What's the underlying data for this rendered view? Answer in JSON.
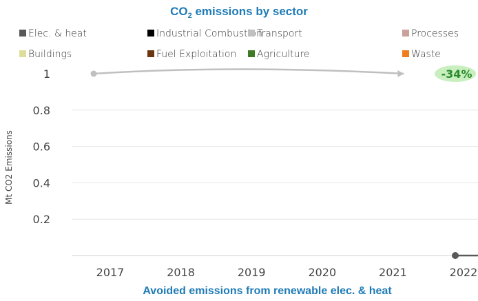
{
  "chart_data": {
    "type": "line",
    "title": "CO",
    "title_sub": "2",
    "title_rest": " emissions by sector",
    "subtitle": "Avoided emissions from renewable elec. & heat",
    "ylabel": "Mt CO2 Emissions",
    "x_ticks": [
      "2017",
      "2018",
      "2019",
      "2020",
      "2021",
      "2022"
    ],
    "y_ticks": [
      "0.2",
      "0.4",
      "0.6",
      "0.8",
      "1"
    ],
    "ylim": [
      0,
      1.05
    ],
    "grid": true,
    "legend_position": "top",
    "legend": [
      {
        "name": "Elec. & heat",
        "color": "#595959"
      },
      {
        "name": "Industrial Combustion",
        "color": "#000000"
      },
      {
        "name": "Transport",
        "color": "#c0c0c0"
      },
      {
        "name": "Processes",
        "color": "#c9a09a"
      },
      {
        "name": "Buildings",
        "color": "#dede9a"
      },
      {
        "name": "Fuel Exploitation",
        "color": "#6b3510"
      },
      {
        "name": "Agriculture",
        "color": "#3f7a25"
      },
      {
        "name": "Waste",
        "color": "#f07d1d"
      }
    ],
    "series": [
      {
        "color": "#bfbfbf",
        "x": [
          "2017",
          "2019",
          "2021"
        ],
        "values": [
          1,
          1.03,
          1
        ]
      },
      {
        "color": "#595959",
        "x": [
          "2022"
        ],
        "values": [
          0
        ]
      }
    ],
    "annotation": {
      "text": "-34%",
      "x": "2022",
      "y": 1,
      "color": "#2a8a2a",
      "fill": "#c9efc0"
    }
  }
}
